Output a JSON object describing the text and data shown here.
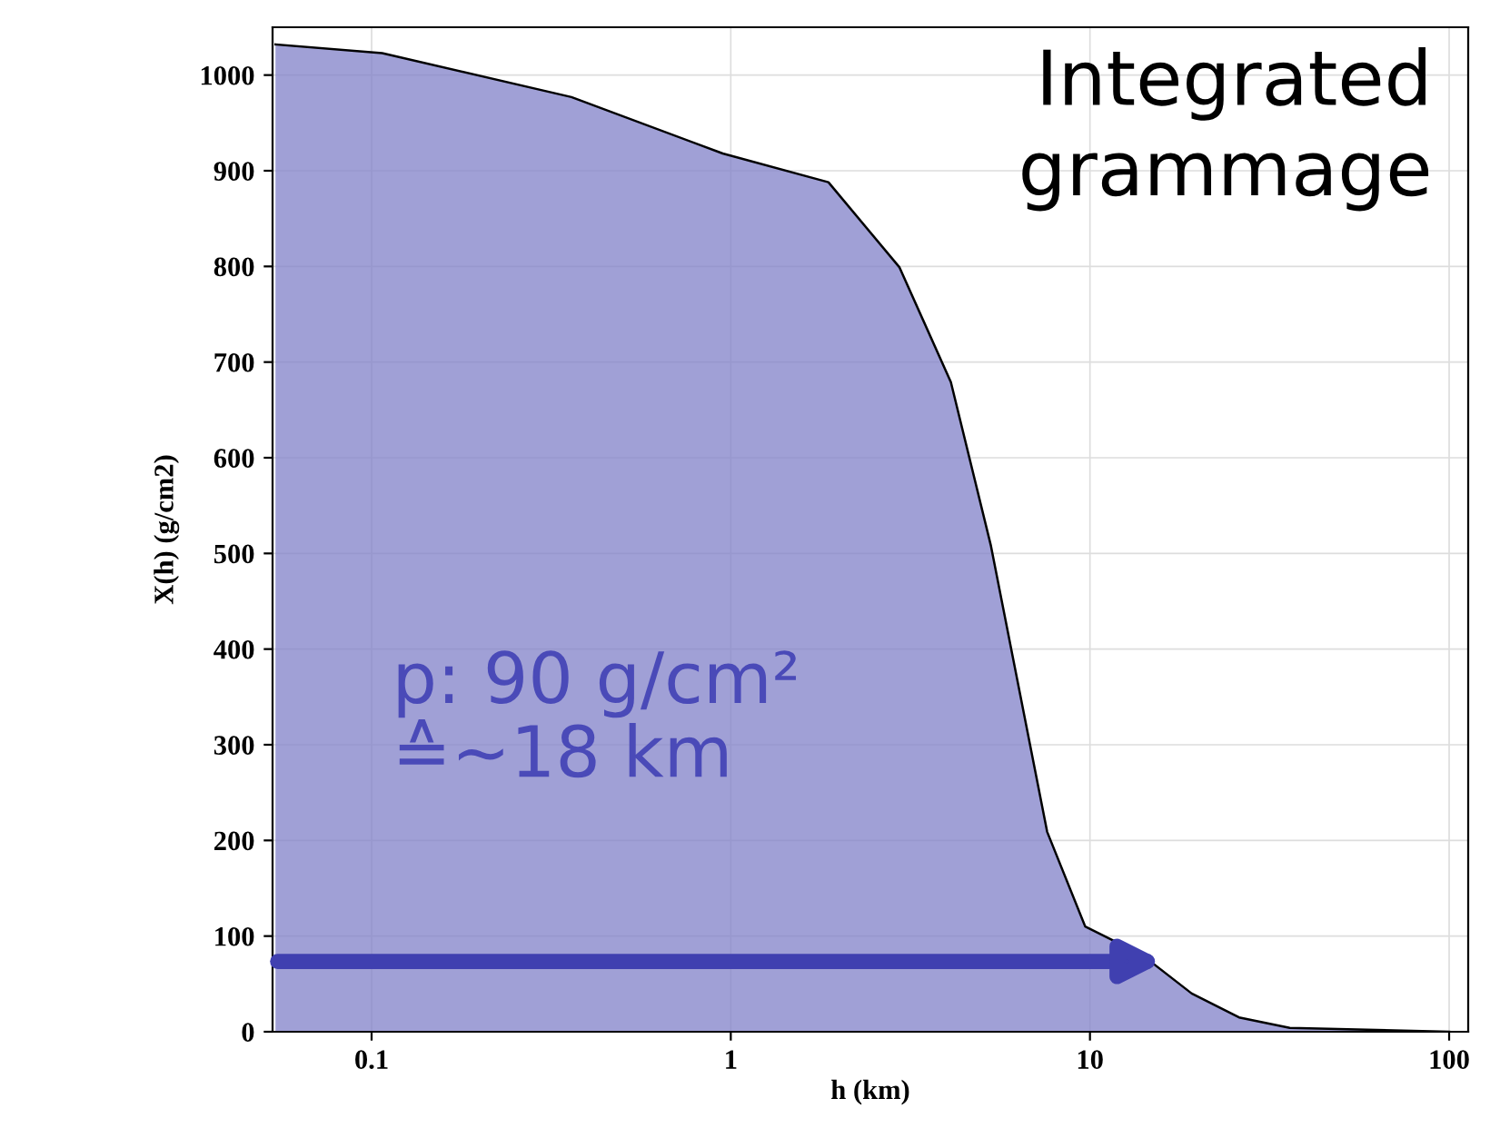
{
  "chart_data": {
    "type": "area",
    "title": "Integrated\ngrammage",
    "xlabel": "h (km)",
    "ylabel": "X(h) (g/cm2)",
    "log": "x",
    "x": [
      0.054,
      0.107,
      0.36,
      0.95,
      1.87,
      2.95,
      4.1,
      5.3,
      7.6,
      9.7,
      14,
      19.2,
      26,
      36,
      100
    ],
    "series": [
      {
        "color": "#8080c8",
        "values": [
          1032,
          1023,
          977,
          918,
          888,
          799,
          679,
          508,
          209,
          110,
          80,
          40,
          15,
          4,
          0
        ]
      }
    ],
    "xlim": [
      0.053,
      113
    ],
    "ylim": [
      0,
      1050
    ],
    "xticks": [
      0.1,
      1,
      10,
      100
    ],
    "yticks": [
      0,
      100,
      200,
      300,
      400,
      500,
      600,
      700,
      800,
      900,
      1000
    ],
    "grid": true,
    "annotations": [
      "p: 90 g/cm²\n≙~18 km"
    ]
  }
}
